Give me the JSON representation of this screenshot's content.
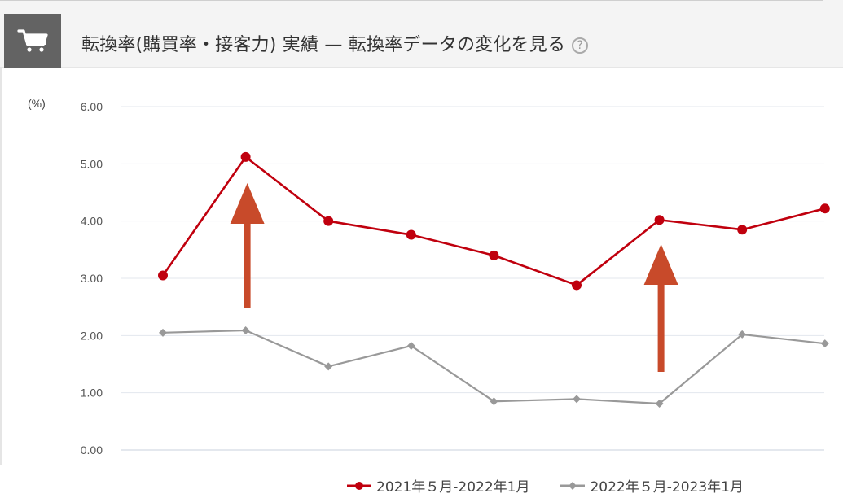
{
  "header": {
    "title": "転換率(購買率・接客力) 実績 — 転換率データの変化を見る",
    "help_glyph": "?",
    "icon": "cart-icon"
  },
  "chart_data": {
    "type": "line",
    "title": "",
    "ylabel": "(%)",
    "ylim": [
      0,
      6
    ],
    "yticks": [
      "0.00",
      "1.00",
      "2.00",
      "3.00",
      "4.00",
      "5.00",
      "6.00"
    ],
    "grid": true,
    "legend_position": "bottom",
    "series": [
      {
        "name": "2021年５月-2022年1月",
        "color": "#c0000e",
        "marker": "circle",
        "values": [
          3.05,
          5.12,
          4.0,
          3.76,
          3.4,
          2.88,
          4.02,
          3.85,
          4.22
        ]
      },
      {
        "name": "2022年５月-2023年1月",
        "color": "#999999",
        "marker": "diamond",
        "values": [
          2.05,
          2.09,
          1.46,
          1.82,
          0.85,
          0.89,
          0.81,
          2.02,
          1.86
        ]
      }
    ],
    "annotations": [
      {
        "type": "arrow-up",
        "color": "#c84a2a",
        "at_index": 1
      },
      {
        "type": "arrow-up",
        "color": "#c84a2a",
        "at_index": 6
      }
    ]
  }
}
